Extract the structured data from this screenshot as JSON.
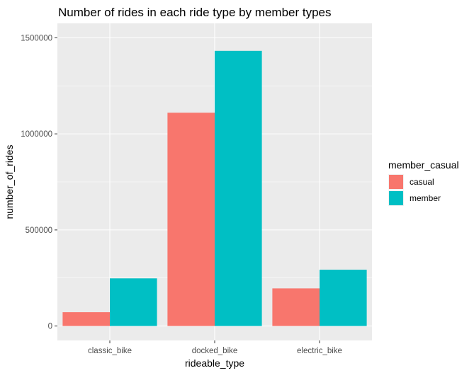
{
  "chart_data": {
    "type": "bar",
    "title": "Number of rides in each ride type by member types",
    "xlabel": "rideable_type",
    "ylabel": "number_of_rides",
    "categories": [
      "classic_bike",
      "docked_bike",
      "electric_bike"
    ],
    "series": [
      {
        "name": "casual",
        "values": [
          72000,
          1110000,
          196000
        ],
        "color": "#F8766D"
      },
      {
        "name": "member",
        "values": [
          248000,
          1432000,
          293000
        ],
        "color": "#00BFC4"
      }
    ],
    "y_ticks": [
      0,
      500000,
      1000000,
      1500000
    ],
    "y_tick_labels": [
      "0",
      "500000",
      "1000000",
      "1500000"
    ],
    "ylim": [
      -75000,
      1575000
    ],
    "grid": true,
    "panel_background": "#EBEBEB",
    "legend": {
      "title": "member_casual",
      "position": "right"
    }
  }
}
